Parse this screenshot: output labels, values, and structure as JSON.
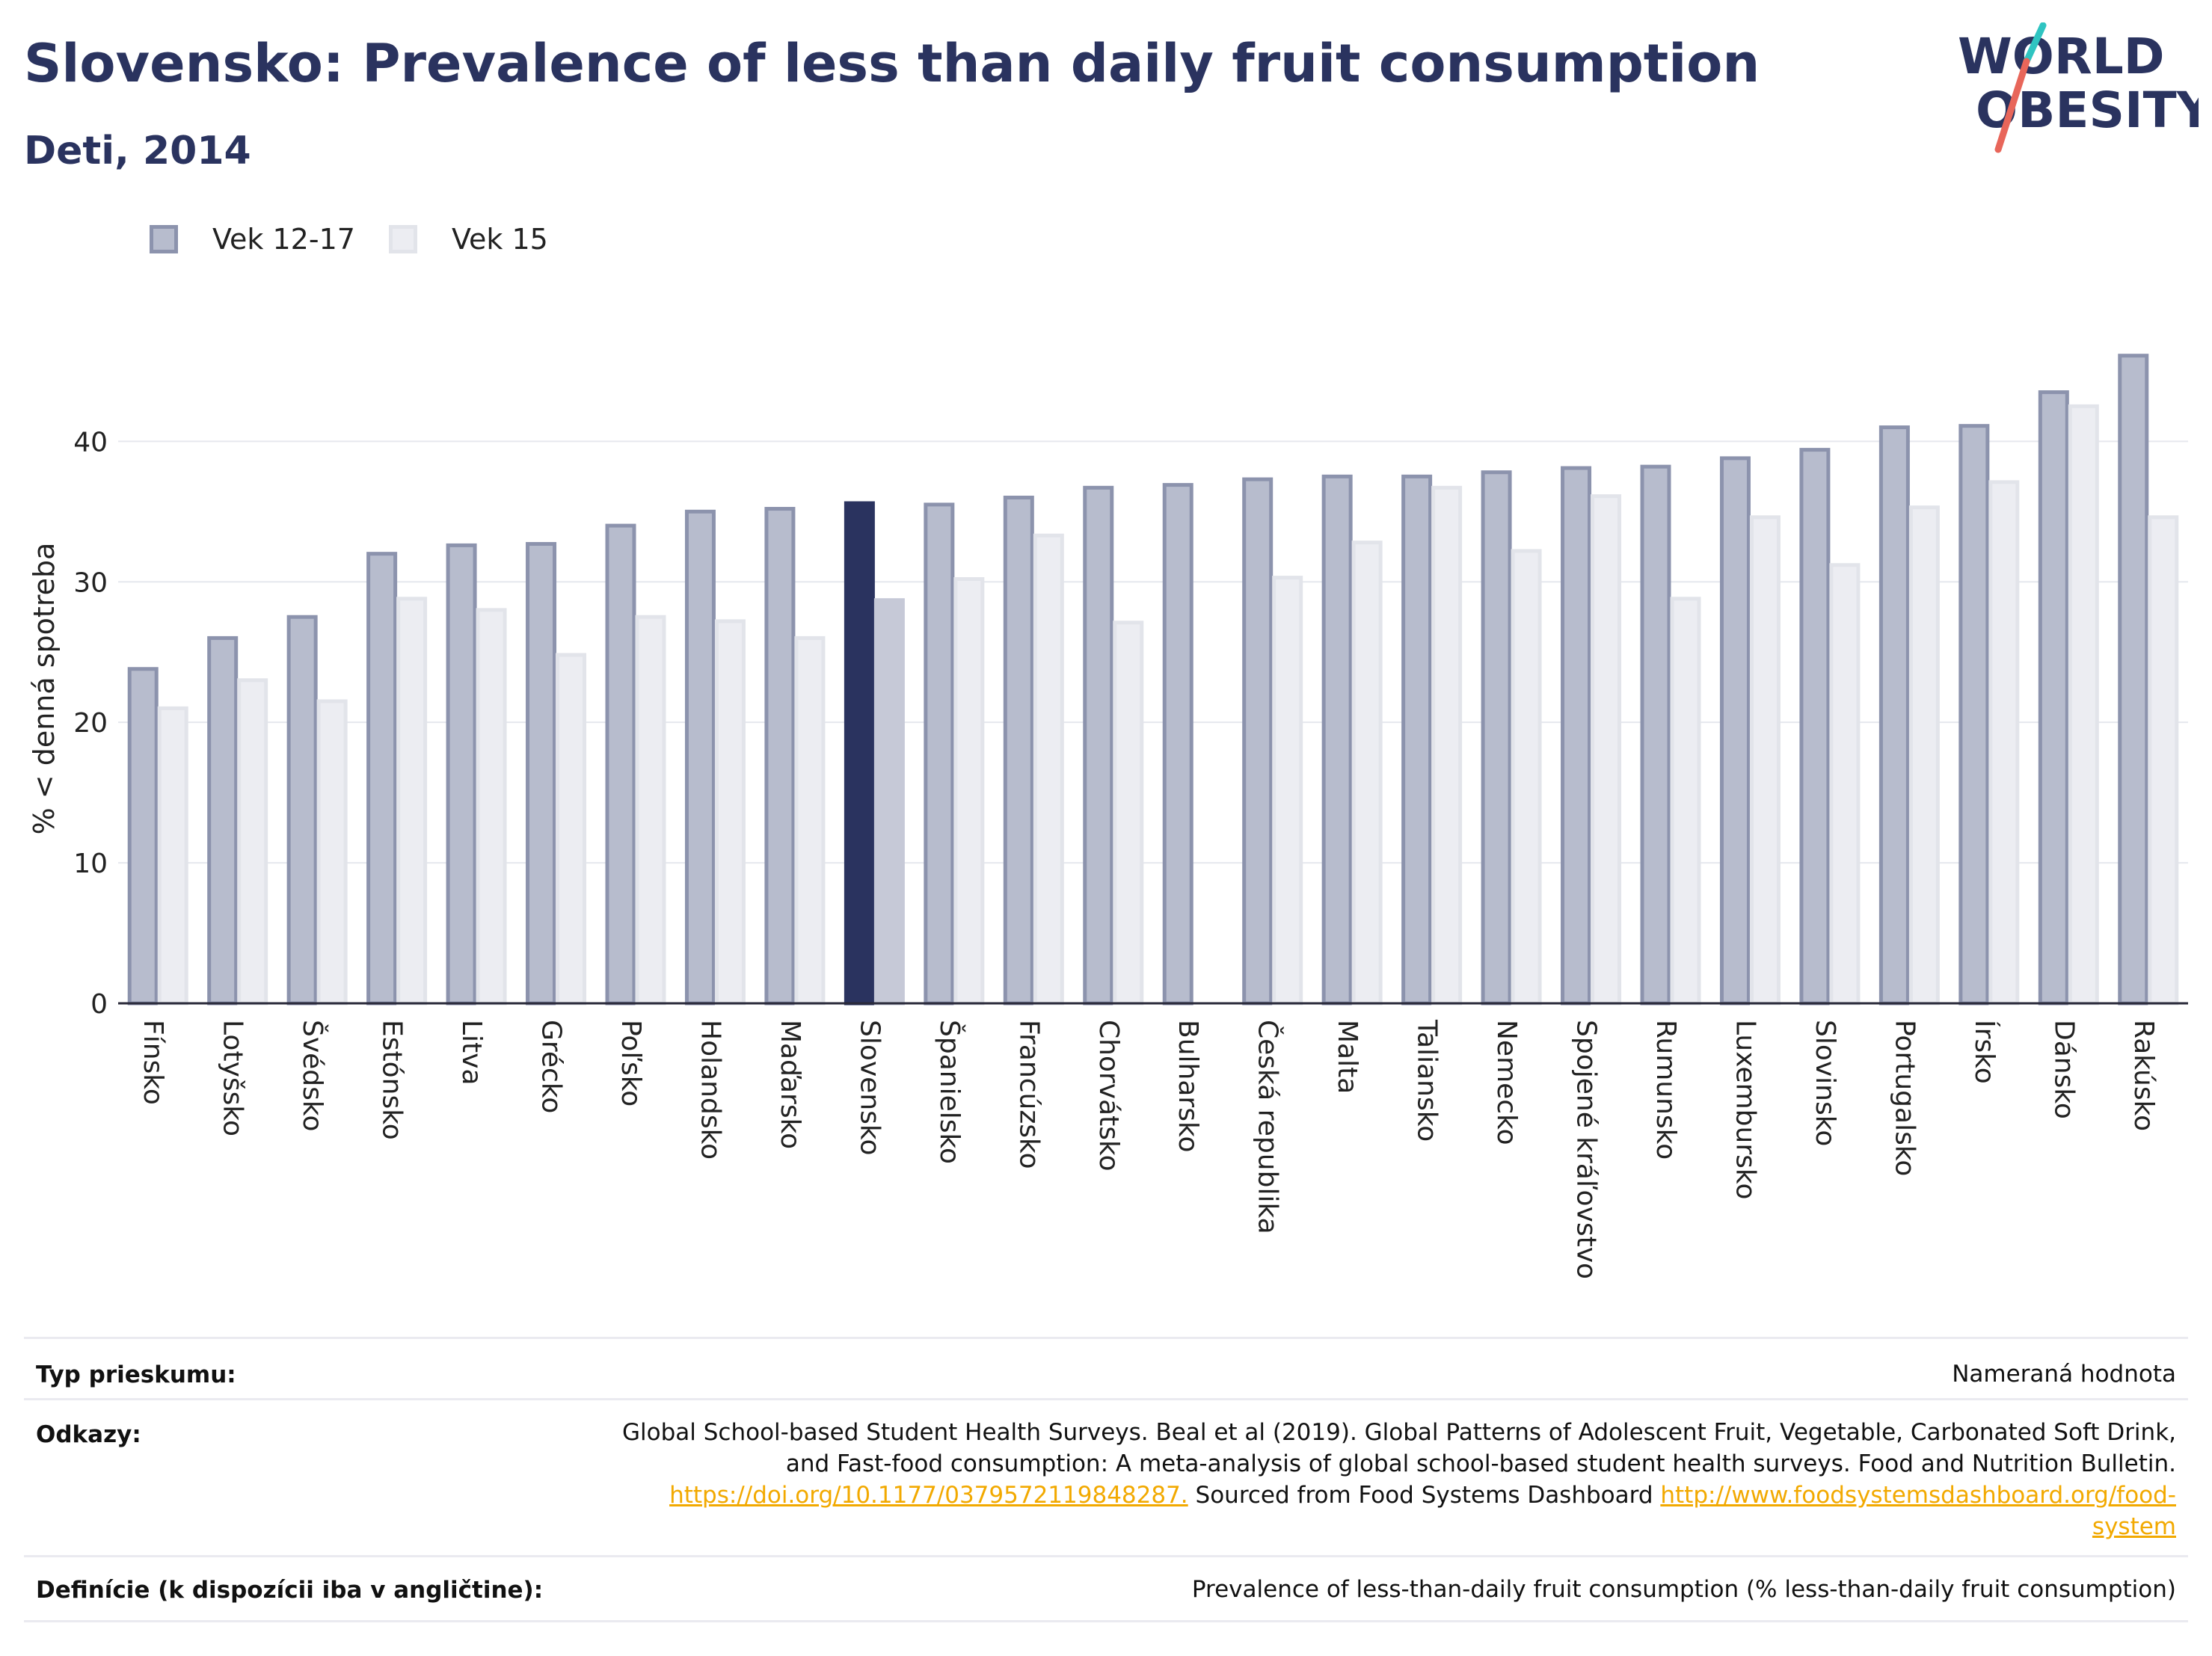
{
  "header": {
    "title": "Slovensko: Prevalence of less than daily fruit consumption",
    "subtitle": "Deti, 2014"
  },
  "logo": {
    "line1": "WORLD",
    "line2": "OBESITY",
    "accent_colors": [
      "#2fc4c1",
      "#e8665a"
    ]
  },
  "colors": {
    "series1": "#b7bccd",
    "series1_border": "#8c93ad",
    "series2": "#ecedf2",
    "series2_border": "#e2e4ea",
    "highlight1": "#2a335f",
    "highlight2": "#c6c9d7",
    "title": "#2a335f",
    "grid": "#e6e8ee",
    "axis": "#2a2a3a"
  },
  "chart_data": {
    "type": "bar",
    "ylabel": "% < denná spotreba",
    "xlabel": "",
    "ylim": [
      0,
      48
    ],
    "yticks": [
      0,
      10,
      20,
      30,
      40
    ],
    "grid": true,
    "legend_position": "top-left",
    "highlight_category": "Slovensko",
    "categories": [
      "Fínsko",
      "Lotyšsko",
      "Švédsko",
      "Estónsko",
      "Litva",
      "Grécko",
      "Poľsko",
      "Holandsko",
      "Maďarsko",
      "Slovensko",
      "Španielsko",
      "Francúzsko",
      "Chorvátsko",
      "Bulharsko",
      "Česká republika",
      "Malta",
      "Taliansko",
      "Nemecko",
      "Spojené kráľovstvo",
      "Rumunsko",
      "Luxembursko",
      "Slovinsko",
      "Portugalsko",
      "Írsko",
      "Dánsko",
      "Rakúsko"
    ],
    "series": [
      {
        "name": "Vek 12-17",
        "values": [
          23.8,
          26.0,
          27.5,
          32.0,
          32.6,
          32.7,
          34.0,
          35.0,
          35.2,
          35.6,
          35.5,
          36.0,
          36.7,
          36.9,
          37.3,
          37.5,
          37.5,
          37.8,
          38.1,
          38.2,
          38.8,
          39.4,
          41.0,
          41.1,
          43.5,
          46.1
        ]
      },
      {
        "name": "Vek 15",
        "values": [
          21.0,
          23.0,
          21.5,
          28.8,
          28.0,
          24.8,
          27.5,
          27.2,
          26.0,
          28.7,
          30.2,
          33.3,
          27.1,
          null,
          30.3,
          32.8,
          36.7,
          32.2,
          36.1,
          28.8,
          34.6,
          31.2,
          35.3,
          37.1,
          42.5,
          34.6
        ]
      }
    ]
  },
  "footer": {
    "survey_label": "Typ prieskumu:",
    "survey_value": "Nameraná hodnota",
    "refs_label": "Odkazy:",
    "refs_line1": "Global School-based Student Health Surveys. Beal et al (2019). Global Patterns of Adolescent Fruit, Vegetable, Carbonated Soft Drink,",
    "refs_line2": "and Fast-food consumption: A meta-analysis of global school-based student health surveys. Food and Nutrition Bulletin.",
    "refs_link1": "https://doi.org/10.1177/0379572119848287.",
    "refs_mid": " Sourced from Food Systems Dashboard ",
    "refs_link2a": "http://www.foodsystemsdashboard.org/food-",
    "refs_link2b": "system",
    "def_label": "Definície (k dispozícii iba v angličtine):",
    "def_value": "Prevalence of less-than-daily fruit consumption (% less-than-daily fruit consumption)"
  }
}
